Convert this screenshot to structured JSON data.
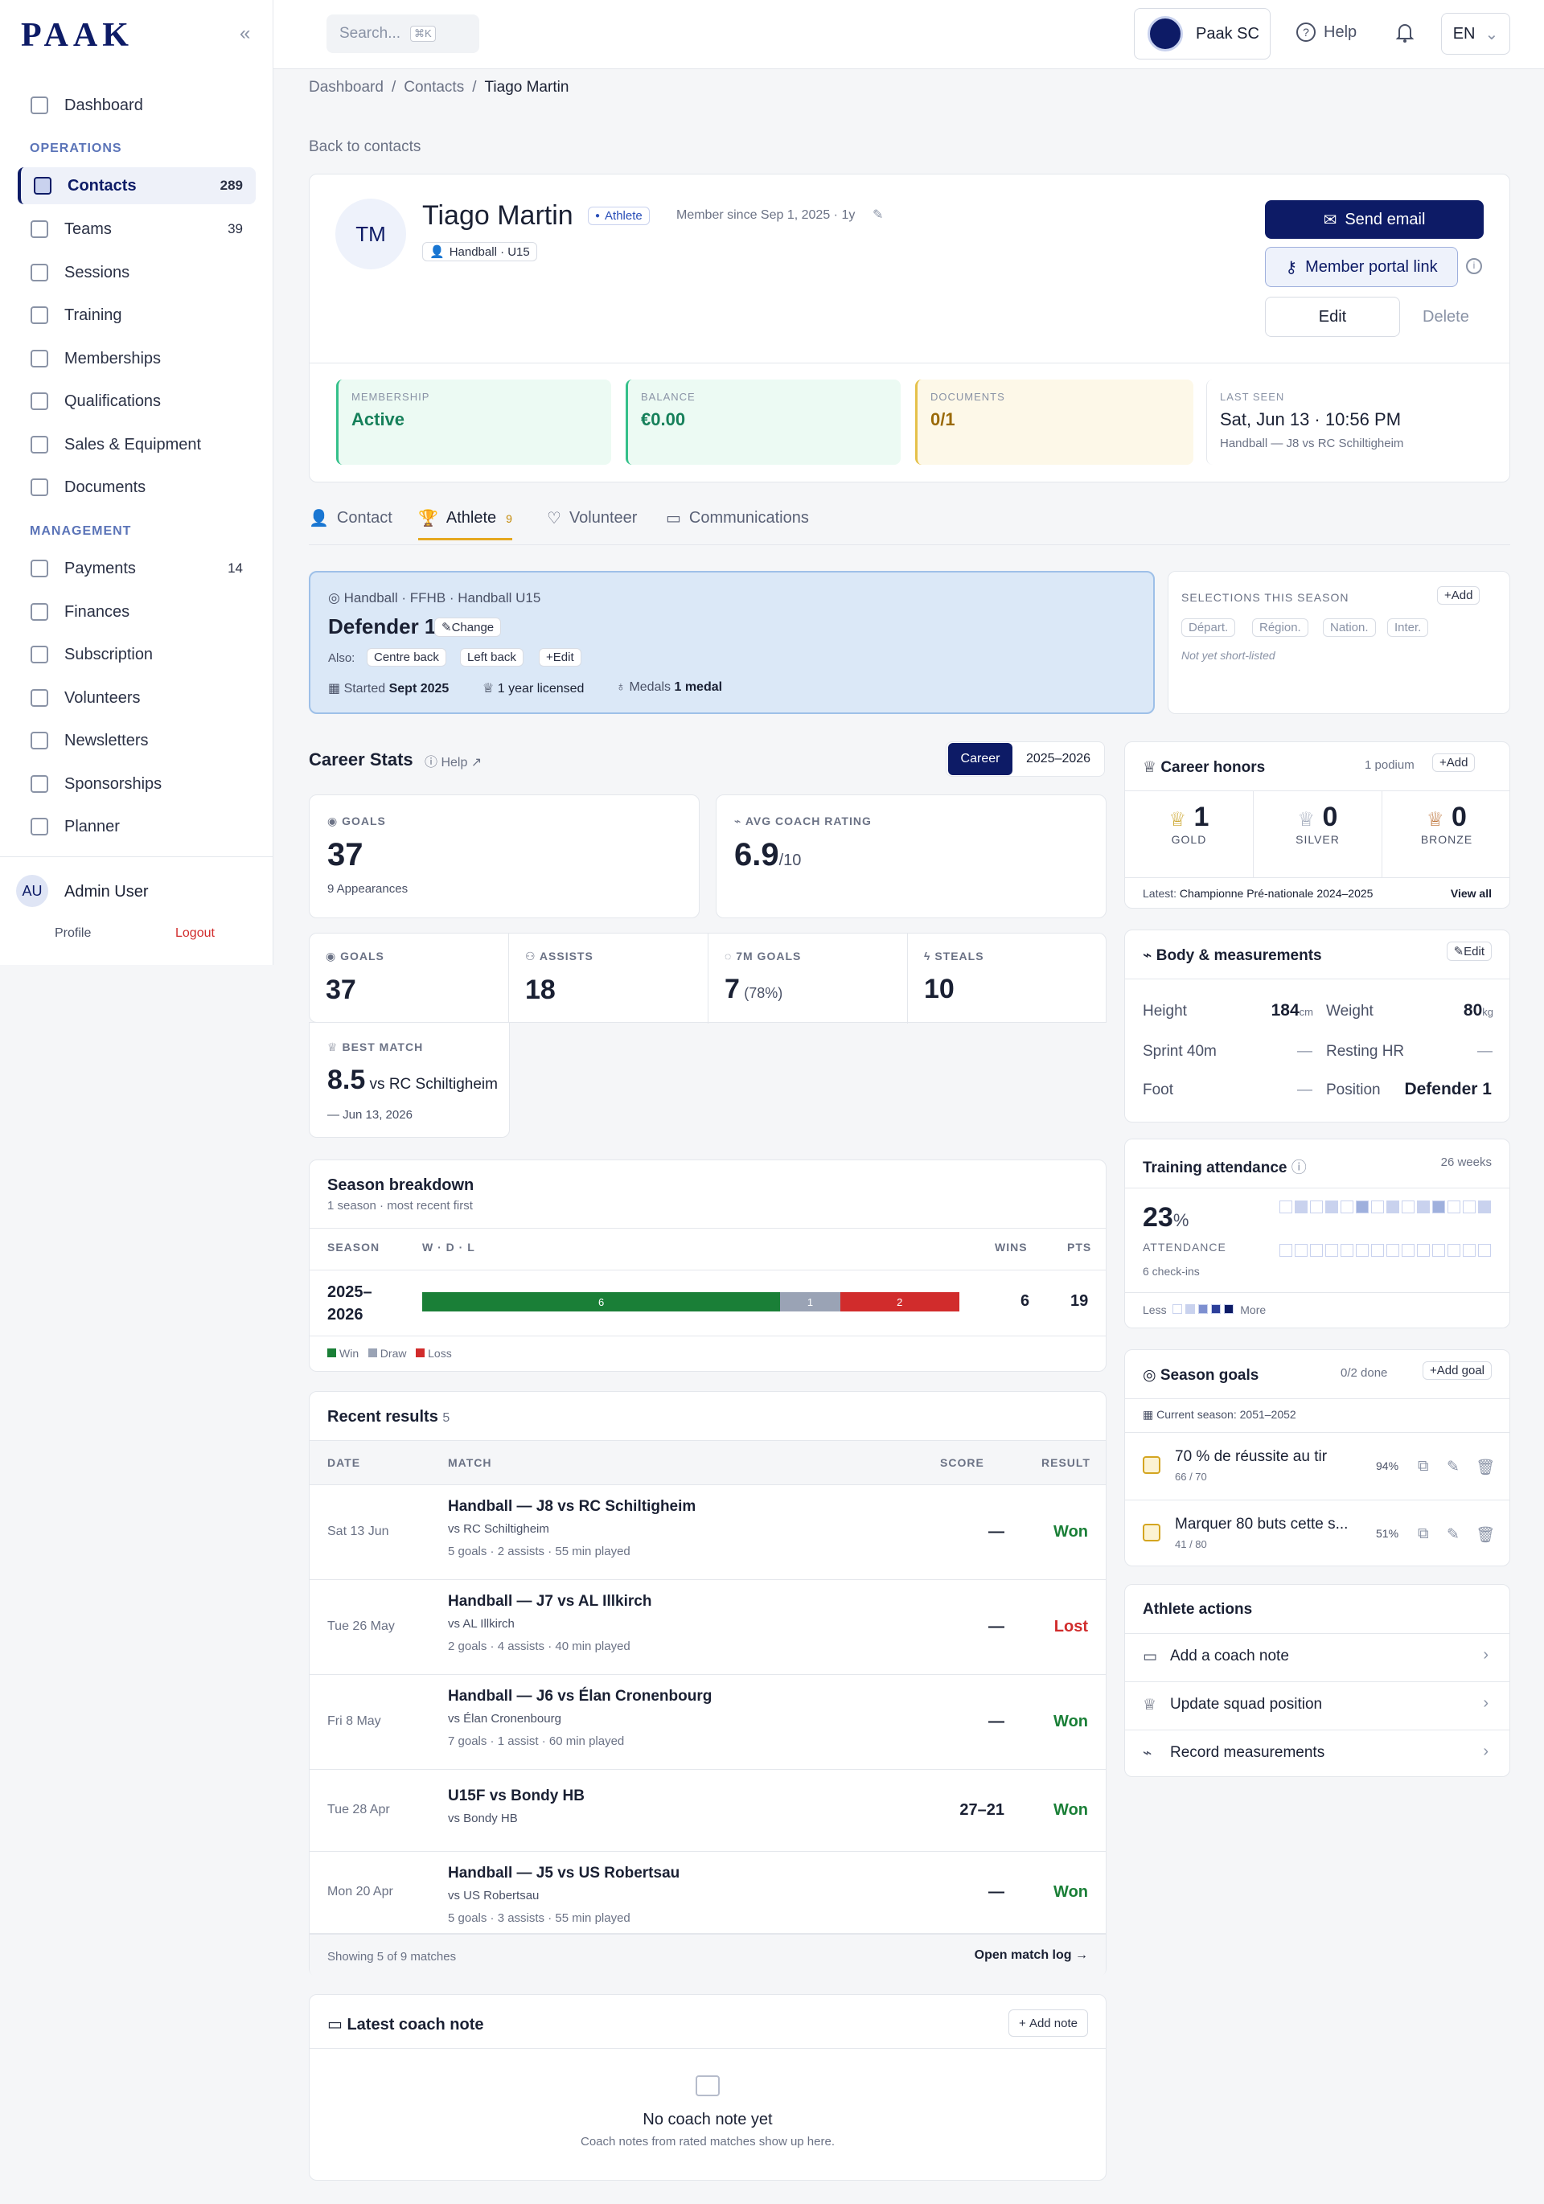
{
  "brand": {
    "logo": "PAAK",
    "club": "Paak SC"
  },
  "sidebar": {
    "items": [
      {
        "label": "Dashboard"
      },
      {
        "section": "OPERATIONS"
      },
      {
        "label": "Contacts",
        "count": "289"
      },
      {
        "label": "Teams",
        "count": "39"
      },
      {
        "label": "Sessions"
      },
      {
        "label": "Training"
      },
      {
        "label": "Memberships"
      },
      {
        "label": "Qualifications"
      },
      {
        "label": "Sales & Equipment"
      },
      {
        "label": "Documents"
      },
      {
        "section": "MANAGEMENT"
      },
      {
        "label": "Payments",
        "count": "14"
      },
      {
        "label": "Finances"
      },
      {
        "label": "Subscription"
      },
      {
        "label": "Volunteers"
      },
      {
        "label": "Newsletters"
      },
      {
        "label": "Sponsorships"
      },
      {
        "label": "Planner"
      }
    ],
    "user": {
      "initials": "AU",
      "name": "Admin User",
      "profile": "Profile",
      "logout": "Logout"
    }
  },
  "topbar": {
    "search_placeholder": "Search...",
    "shortcut": "⌘K",
    "help": "Help",
    "lang": "EN"
  },
  "breadcrumb": [
    "Dashboard",
    "Contacts",
    "Tiago Martin"
  ],
  "back": "Back to contacts",
  "profile": {
    "initials": "TM",
    "name": "Tiago Martin",
    "role": "Athlete",
    "since": "Member since Sep 1, 2025 · 1y",
    "team": "Handball · U15",
    "send_email": "Send email",
    "portal": "Member portal link",
    "edit": "Edit",
    "delete": "Delete"
  },
  "kpis": [
    {
      "label": "MEMBERSHIP",
      "value": "Active"
    },
    {
      "label": "BALANCE",
      "value": "€0.00"
    },
    {
      "label": "DOCUMENTS",
      "value": "0/1"
    },
    {
      "label": "LAST SEEN",
      "value": "Sat, Jun 13 · 10:56 PM",
      "sub": "Handball — J8 vs RC Schiltigheim"
    }
  ],
  "tabs": [
    {
      "label": "Contact"
    },
    {
      "label": "Athlete",
      "count": "9"
    },
    {
      "label": "Volunteer"
    },
    {
      "label": "Communications"
    }
  ],
  "position": {
    "league": "Handball · FFHB · Handball U15",
    "title": "Defender 1",
    "change": "Change",
    "also": "Also:",
    "alt": [
      "Centre back",
      "Left back"
    ],
    "edit": "Edit",
    "started_l": "Started",
    "started": "Sept 2025",
    "licensed": "1 year licensed",
    "medals_l": "Medals",
    "medals": "1 medal"
  },
  "selections": {
    "title": "SELECTIONS THIS SEASON",
    "add": "Add",
    "levels": [
      "Départ.",
      "Région.",
      "Nation.",
      "Inter."
    ],
    "note": "Not yet short-listed"
  },
  "career": {
    "title": "Career Stats",
    "help": "Help",
    "toggle": [
      "Career",
      "2025–2026"
    ],
    "big": [
      {
        "label": "GOALS",
        "value": "37",
        "sub": "9 Appearances"
      },
      {
        "label": "AVG COACH RATING",
        "value": "6.9",
        "unit": "/10"
      }
    ],
    "small": [
      {
        "label": "GOALS",
        "value": "37"
      },
      {
        "label": "ASSISTS",
        "value": "18"
      },
      {
        "label": "7M GOALS",
        "value": "7",
        "extra": "(78%)"
      },
      {
        "label": "STEALS",
        "value": "10"
      }
    ],
    "best": {
      "label": "BEST MATCH",
      "value": "8.5",
      "vs": "vs RC Schiltigheim",
      "date": "Jun 13, 2026"
    }
  },
  "season": {
    "title": "Season breakdown",
    "sub": "1 season · most recent first",
    "cols": [
      "SEASON",
      "W · D · L",
      "WINS",
      "PTS"
    ],
    "row": {
      "season": "2025–2026",
      "w": 6,
      "d": 1,
      "l": 2,
      "wins": "6",
      "pts": "19"
    },
    "legend": [
      "Win",
      "Draw",
      "Loss"
    ]
  },
  "results": {
    "title": "Recent results",
    "count": "5",
    "cols": [
      "DATE",
      "MATCH",
      "SCORE",
      "RESULT"
    ],
    "rows": [
      {
        "date": "Sat 13 Jun",
        "match": "Handball — J8 vs RC Schiltigheim",
        "vs": "vs RC Schiltigheim",
        "stats": "5 goals · 2 assists · 55 min played",
        "score": "—",
        "result": "Won"
      },
      {
        "date": "Tue 26 May",
        "match": "Handball — J7 vs AL Illkirch",
        "vs": "vs AL Illkirch",
        "stats": "2 goals · 4 assists · 40 min played",
        "score": "—",
        "result": "Lost"
      },
      {
        "date": "Fri 8 May",
        "match": "Handball — J6 vs Élan Cronenbourg",
        "vs": "vs Élan Cronenbourg",
        "stats": "7 goals · 1 assist · 60 min played",
        "score": "—",
        "result": "Won"
      },
      {
        "date": "Tue 28 Apr",
        "match": "U15F vs Bondy HB",
        "vs": "vs Bondy HB",
        "stats": "",
        "score": "27–21",
        "result": "Won"
      },
      {
        "date": "Mon 20 Apr",
        "match": "Handball — J5 vs US Robertsau",
        "vs": "vs US Robertsau",
        "stats": "5 goals · 3 assists · 55 min played",
        "score": "—",
        "result": "Won"
      }
    ],
    "showing": "Showing 5 of 9 matches",
    "open": "Open match log"
  },
  "coach": {
    "title": "Latest coach note",
    "add": "Add note",
    "empty": "No coach note yet",
    "empty_sub": "Coach notes from rated matches show up here."
  },
  "honors": {
    "title": "Career honors",
    "count": "1 podium",
    "add": "Add",
    "gold": "1",
    "silver": "0",
    "bronze": "0",
    "gold_l": "GOLD",
    "silver_l": "SILVER",
    "bronze_l": "BRONZE",
    "latest_l": "Latest:",
    "latest": "Championne Pré-nationale 2024–2025",
    "view": "View all"
  },
  "body": {
    "title": "Body & measurements",
    "edit": "Edit",
    "height_l": "Height",
    "height": "184",
    "height_u": "cm",
    "weight_l": "Weight",
    "weight": "80",
    "weight_u": "kg",
    "sprint_l": "Sprint 40m",
    "sprint": "—",
    "hr_l": "Resting HR",
    "hr": "—",
    "foot_l": "Foot",
    "foot": "—",
    "pos_l": "Position",
    "pos": "Defender 1"
  },
  "attendance": {
    "title": "Training attendance",
    "weeks": "26 weeks",
    "pct": "23",
    "unit": "%",
    "label": "ATTENDANCE",
    "checkins": "6 check-ins",
    "less": "Less",
    "more": "More"
  },
  "goals": {
    "title": "Season goals",
    "done": "0/2 done",
    "add": "Add goal",
    "current": "Current season: 2051–2052",
    "items": [
      {
        "name": "70 % de réussite au tir",
        "progress": "66 / 70",
        "pct": "94%"
      },
      {
        "name": "Marquer 80 buts cette s...",
        "progress": "41 / 80",
        "pct": "51%"
      }
    ]
  },
  "actions": {
    "title": "Athlete actions",
    "items": [
      "Add a coach note",
      "Update squad position",
      "Record measurements"
    ]
  },
  "colors": {
    "brand": "#0d1b66",
    "win": "#1a7f37",
    "draw": "#9aa3b5",
    "loss": "#d12c2c"
  }
}
